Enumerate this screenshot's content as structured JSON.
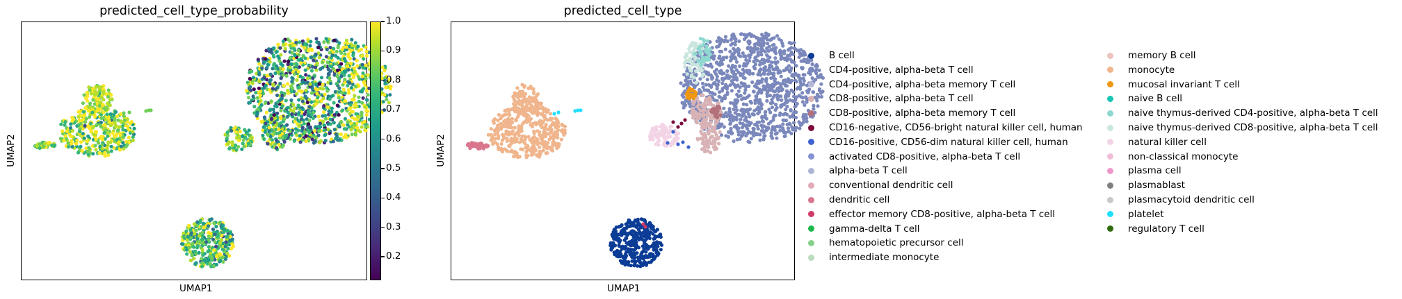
{
  "chart_data": [
    {
      "type": "scatter",
      "title": "predicted_cell_type_probability",
      "xlabel": "UMAP1",
      "ylabel": "UMAP2",
      "color_scale": {
        "colormap": "viridis",
        "range": [
          0.12,
          1.0
        ],
        "ticks": [
          "0.2",
          "0.3",
          "0.4",
          "0.5",
          "0.6",
          "0.7",
          "0.8",
          "0.9",
          "1.0"
        ]
      },
      "clusters": [
        {
          "region": "top-right large cluster",
          "dominant_color": "#3ab87a",
          "approx_probability": 0.75
        },
        {
          "region": "left cluster",
          "dominant_color": "#d7e219",
          "approx_probability": 0.85
        },
        {
          "region": "bottom cluster",
          "dominant_color": "#8ad24d",
          "approx_probability": 0.8
        },
        {
          "region": "middle small cluster",
          "dominant_color": "#a6d93d",
          "approx_probability": 0.8
        }
      ]
    },
    {
      "type": "scatter",
      "title": "predicted_cell_type",
      "xlabel": "UMAP1",
      "ylabel": "UMAP2",
      "legend_placement": "right (two columns)",
      "legend": [
        {
          "label": "B cell",
          "color": "#0b3c96"
        },
        {
          "label": "CD4-positive, alpha-beta T cell",
          "color": "#7b88bc"
        },
        {
          "label": "CD4-positive, alpha-beta memory T cell",
          "color": "#b3b8d8"
        },
        {
          "label": "CD8-positive, alpha-beta T cell",
          "color": "#d8b2b5"
        },
        {
          "label": "CD8-positive, alpha-beta memory T cell",
          "color": "#b2707b"
        },
        {
          "label": "CD16-negative, CD56-bright natural killer cell, human",
          "color": "#7c0b3a"
        },
        {
          "label": "CD16-positive, CD56-dim natural killer cell, human",
          "color": "#3e62d0"
        },
        {
          "label": "activated CD8-positive, alpha-beta T cell",
          "color": "#8593d4"
        },
        {
          "label": "alpha-beta T cell",
          "color": "#abb4d4"
        },
        {
          "label": "conventional dendritic cell",
          "color": "#e3aab9"
        },
        {
          "label": "dendritic cell",
          "color": "#d9768d"
        },
        {
          "label": "effector memory CD8-positive, alpha-beta T cell",
          "color": "#cf3b66"
        },
        {
          "label": "gamma-delta T cell",
          "color": "#1db84a"
        },
        {
          "label": "hematopoietic precursor cell",
          "color": "#86d089"
        },
        {
          "label": "intermediate monocyte",
          "color": "#b9ddbe"
        },
        {
          "label": "memory B cell",
          "color": "#ecc3bd"
        },
        {
          "label": "monocyte",
          "color": "#f0b58c"
        },
        {
          "label": "mucosal invariant T cell",
          "color": "#ef9711"
        },
        {
          "label": "naive B cell",
          "color": "#16c6b4"
        },
        {
          "label": "naive thymus-derived CD4-positive, alpha-beta T cell",
          "color": "#8ed8d0"
        },
        {
          "label": "naive thymus-derived CD8-positive, alpha-beta T cell",
          "color": "#c9e6de"
        },
        {
          "label": "natural killer cell",
          "color": "#f3d4e6"
        },
        {
          "label": "non-classical monocyte",
          "color": "#f1bed9"
        },
        {
          "label": "plasma cell",
          "color": "#ef97cd"
        },
        {
          "label": "plasmablast",
          "color": "#7f7f7f"
        },
        {
          "label": "plasmacytoid dendritic cell",
          "color": "#c7c7c7"
        },
        {
          "label": "platelet",
          "color": "#1fdfff"
        },
        {
          "label": "regulatory T cell",
          "color": "#2f6b0d"
        }
      ]
    }
  ]
}
